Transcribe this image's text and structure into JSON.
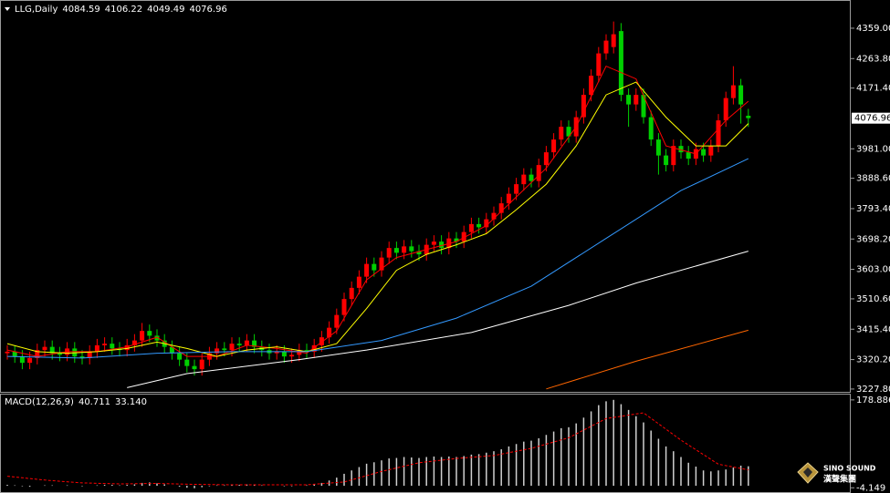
{
  "chart_data": [
    {
      "type": "candlestick",
      "title": "LLG,Daily",
      "up_color": "#ff0000",
      "down_color": "#00d000",
      "open": [
        3340,
        3345,
        3330,
        3310,
        3325,
        3350,
        3360,
        3340,
        3335,
        3355,
        3330,
        3325,
        3345,
        3365,
        3370,
        3355,
        3350,
        3365,
        3380,
        3410,
        3395,
        3380,
        3360,
        3340,
        3320,
        3300,
        3290,
        3320,
        3340,
        3355,
        3350,
        3370,
        3365,
        3380,
        3360,
        3350,
        3340,
        3345,
        3330,
        3335,
        3350,
        3345,
        3365,
        3390,
        3420,
        3460,
        3510,
        3545,
        3580,
        3620,
        3600,
        3640,
        3670,
        3655,
        3675,
        3660,
        3650,
        3680,
        3690,
        3670,
        3700,
        3690,
        3720,
        3745,
        3735,
        3760,
        3780,
        3810,
        3840,
        3870,
        3900,
        3880,
        3930,
        3970,
        4010,
        4050,
        4020,
        4080,
        4150,
        4210,
        4280,
        4300,
        4350,
        4150,
        4120,
        4150,
        4080,
        4010,
        3960,
        3930,
        3990,
        3970,
        3950,
        3980,
        3960,
        3990,
        4070,
        4140,
        4180,
        4084.59
      ],
      "high": [
        3365,
        3365,
        3350,
        3345,
        3370,
        3380,
        3380,
        3360,
        3375,
        3375,
        3350,
        3365,
        3385,
        3390,
        3390,
        3375,
        3385,
        3400,
        3435,
        3430,
        3415,
        3400,
        3380,
        3360,
        3340,
        3320,
        3340,
        3360,
        3375,
        3375,
        3390,
        3390,
        3400,
        3400,
        3380,
        3370,
        3365,
        3365,
        3355,
        3370,
        3370,
        3385,
        3410,
        3440,
        3480,
        3530,
        3565,
        3600,
        3640,
        3640,
        3660,
        3690,
        3690,
        3695,
        3695,
        3680,
        3700,
        3710,
        3710,
        3720,
        3720,
        3740,
        3765,
        3765,
        3780,
        3800,
        3830,
        3860,
        3890,
        3920,
        3920,
        3950,
        3990,
        4030,
        4070,
        4070,
        4100,
        4170,
        4230,
        4300,
        4340,
        4380,
        4375,
        4170,
        4170,
        4170,
        4100,
        4030,
        3980,
        4010,
        4010,
        3990,
        4000,
        4000,
        4010,
        4090,
        4160,
        4240,
        4200,
        4106.22
      ],
      "low": [
        3320,
        3310,
        3290,
        3290,
        3305,
        3330,
        3320,
        3315,
        3315,
        3310,
        3305,
        3305,
        3325,
        3345,
        3335,
        3330,
        3330,
        3345,
        3360,
        3375,
        3360,
        3340,
        3320,
        3300,
        3280,
        3270,
        3270,
        3300,
        3320,
        3330,
        3330,
        3345,
        3345,
        3340,
        3330,
        3320,
        3320,
        3310,
        3310,
        3315,
        3325,
        3325,
        3345,
        3370,
        3400,
        3440,
        3490,
        3525,
        3560,
        3580,
        3580,
        3620,
        3635,
        3635,
        3640,
        3630,
        3630,
        3660,
        3650,
        3650,
        3670,
        3670,
        3700,
        3715,
        3715,
        3740,
        3760,
        3790,
        3820,
        3850,
        3860,
        3860,
        3910,
        3950,
        3990,
        4000,
        4000,
        4060,
        4130,
        4190,
        4260,
        4280,
        4130,
        4050,
        4100,
        4060,
        3990,
        3900,
        3910,
        3910,
        3950,
        3930,
        3930,
        3940,
        3940,
        3970,
        4050,
        4120,
        4060,
        4049.49
      ],
      "close": [
        3345,
        3330,
        3310,
        3325,
        3350,
        3360,
        3340,
        3335,
        3355,
        3330,
        3325,
        3345,
        3365,
        3370,
        3355,
        3350,
        3365,
        3380,
        3410,
        3395,
        3380,
        3360,
        3340,
        3320,
        3300,
        3290,
        3320,
        3340,
        3355,
        3350,
        3370,
        3365,
        3380,
        3360,
        3350,
        3340,
        3345,
        3330,
        3335,
        3350,
        3345,
        3365,
        3390,
        3420,
        3460,
        3510,
        3545,
        3580,
        3620,
        3600,
        3640,
        3670,
        3655,
        3675,
        3660,
        3650,
        3680,
        3690,
        3670,
        3700,
        3690,
        3720,
        3745,
        3735,
        3760,
        3780,
        3810,
        3840,
        3870,
        3900,
        3880,
        3930,
        3970,
        4010,
        4050,
        4020,
        4080,
        4150,
        4210,
        4280,
        4320,
        4340,
        4150,
        4120,
        4150,
        4080,
        4010,
        3960,
        3930,
        3990,
        3970,
        3950,
        3980,
        3960,
        3990,
        4070,
        4140,
        4180,
        4120,
        4076.96
      ],
      "overlays": [
        {
          "color": "#ff0000",
          "x": [
            0,
            4,
            8,
            12,
            16,
            20,
            24,
            28,
            32,
            36,
            40,
            44,
            48,
            52,
            56,
            60,
            64,
            68,
            72,
            76,
            80,
            84,
            88,
            92,
            96,
            99
          ],
          "values": [
            3350,
            3330,
            3345,
            3345,
            3360,
            3390,
            3330,
            3330,
            3365,
            3355,
            3340,
            3410,
            3570,
            3640,
            3665,
            3690,
            3740,
            3830,
            3920,
            4050,
            4240,
            4200,
            3990,
            3965,
            4070,
            4130
          ]
        },
        {
          "color": "#ffff00",
          "x": [
            0,
            4,
            8,
            12,
            16,
            20,
            24,
            28,
            32,
            36,
            40,
            44,
            48,
            52,
            56,
            60,
            64,
            68,
            72,
            76,
            80,
            84,
            88,
            92,
            96,
            99
          ],
          "values": [
            3370,
            3345,
            3340,
            3345,
            3355,
            3375,
            3355,
            3330,
            3350,
            3360,
            3345,
            3370,
            3480,
            3600,
            3650,
            3680,
            3715,
            3790,
            3870,
            3990,
            4150,
            4190,
            4080,
            3990,
            3990,
            4060
          ]
        },
        {
          "color": "#3399ff",
          "x": [
            0,
            10,
            20,
            30,
            40,
            50,
            60,
            70,
            80,
            90,
            99
          ],
          "values": [
            3330,
            3325,
            3340,
            3345,
            3345,
            3380,
            3450,
            3550,
            3700,
            3850,
            3950
          ]
        },
        {
          "color": "#ffffff",
          "x": [
            16,
            24,
            39,
            48,
            62,
            75,
            84,
            99
          ],
          "values": [
            3232,
            3276,
            3320,
            3350,
            3405,
            3490,
            3560,
            3660
          ]
        },
        {
          "color": "#ff6600",
          "x": [
            72,
            84,
            99
          ],
          "values": [
            3228,
            3315,
            3412
          ]
        }
      ],
      "ylim": [
        3219,
        4436
      ],
      "yticks": [
        {
          "value": 4359,
          "label": "4359.00"
        },
        {
          "value": 4263.8,
          "label": "4263.80"
        },
        {
          "value": 4171.4,
          "label": "4171.40"
        },
        {
          "value": 3981,
          "label": "3981.00"
        },
        {
          "value": 3888.6,
          "label": "3888.60"
        },
        {
          "value": 3793.4,
          "label": "3793.40"
        },
        {
          "value": 3698.2,
          "label": "3698.20"
        },
        {
          "value": 3603,
          "label": "3603.00"
        },
        {
          "value": 3510.6,
          "label": "3510.60"
        },
        {
          "value": 3415.4,
          "label": "3415.40"
        },
        {
          "value": 3320.2,
          "label": "3320.20"
        },
        {
          "value": 3227.8,
          "label": "3227.80"
        }
      ]
    },
    {
      "type": "macd",
      "title": "MACD(12,26,9)",
      "color": "#d0d0d0",
      "values": [
        2,
        1,
        -1,
        -2,
        0,
        1,
        1,
        0,
        1,
        0,
        -1,
        0,
        1,
        2,
        2,
        1,
        2,
        3,
        6,
        7,
        5,
        3,
        0,
        -2,
        -4,
        -5,
        -3,
        -1,
        1,
        1,
        2,
        2,
        3,
        2,
        1,
        0,
        0,
        -1,
        -1,
        0,
        1,
        3,
        6,
        11,
        17,
        25,
        32,
        39,
        46,
        49,
        53,
        57,
        58,
        60,
        59,
        58,
        60,
        61,
        60,
        61,
        60,
        62,
        65,
        66,
        69,
        72,
        76,
        82,
        87,
        92,
        94,
        99,
        106,
        113,
        120,
        122,
        130,
        142,
        155,
        168,
        176,
        179,
        170,
        158,
        145,
        132,
        115,
        98,
        82,
        72,
        60,
        48,
        40,
        32,
        30,
        32,
        34,
        38,
        42,
        40.711
      ],
      "signal": {
        "color": "#ff0000",
        "x": [
          0,
          5,
          10,
          15,
          20,
          25,
          30,
          35,
          40,
          45,
          50,
          55,
          60,
          65,
          70,
          75,
          80,
          85,
          90,
          95,
          99
        ],
        "values": [
          20,
          12,
          6,
          4,
          5,
          3,
          2,
          2,
          2,
          8,
          30,
          48,
          57,
          63,
          78,
          100,
          140,
          152,
          95,
          45,
          33.14
        ],
        "value_labels": [
          null,
          null,
          null,
          null,
          null,
          null,
          null,
          null,
          null,
          null,
          null,
          null,
          null,
          null,
          null,
          null,
          null,
          null,
          null,
          null,
          "33.140"
        ]
      },
      "ylim": [
        -15,
        190
      ],
      "yticks": [
        178.886,
        -4.149
      ]
    }
  ],
  "watermark": {
    "brand": "SINO SOUND",
    "chinese": "漢聲集團"
  }
}
